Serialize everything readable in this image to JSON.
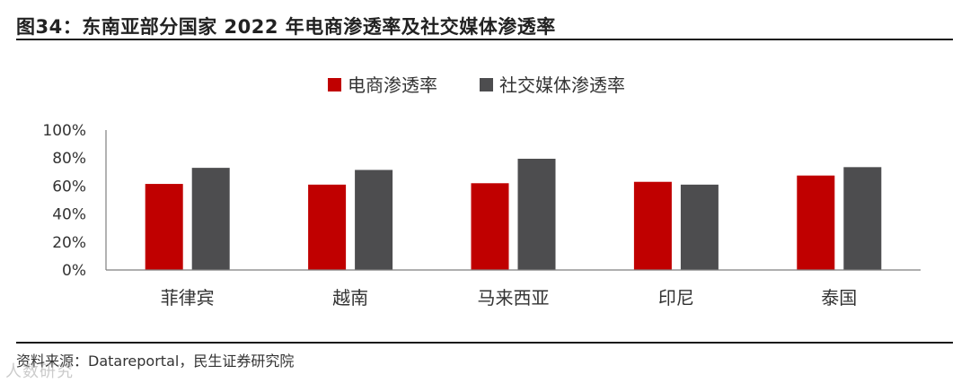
{
  "header": {
    "title": "图34：东南亚部分国家 2022 年电商渗透率及社交媒体渗透率"
  },
  "footer": {
    "source": "资料来源：Datareportal，民生证券研究院",
    "watermark": "人数研究"
  },
  "chart_data": {
    "type": "bar",
    "categories": [
      "菲律宾",
      "越南",
      "马来西亚",
      "印尼",
      "泰国"
    ],
    "series": [
      {
        "name": "电商渗透率",
        "color": "#c00000",
        "values": [
          61.5,
          61,
          62,
          63,
          67.5
        ]
      },
      {
        "name": "社交媒体渗透率",
        "color": "#4d4d4f",
        "values": [
          73,
          71.5,
          79.5,
          61,
          73.5
        ]
      }
    ],
    "yticks": [
      "0%",
      "20%",
      "40%",
      "60%",
      "80%",
      "100%"
    ],
    "ylim": [
      0,
      100
    ],
    "legend": "top-center",
    "grid": false
  }
}
